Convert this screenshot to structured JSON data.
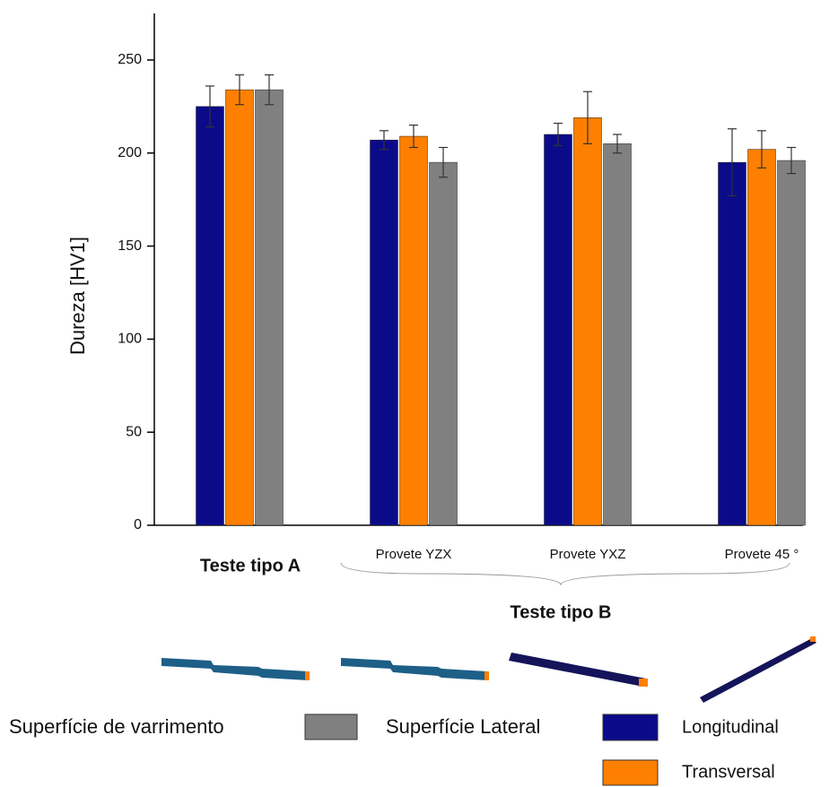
{
  "chart_data": {
    "type": "bar",
    "y_label": "Dureza [HV1]",
    "categories": [
      "Teste tipo A",
      "Provete YZX",
      "Provete YXZ",
      "Provete 45 °"
    ],
    "group_label": "Teste tipo B",
    "legend_heading": "Superfície Lateral",
    "series": [
      {
        "name": "Longitudinal",
        "color": "#0b0b8a",
        "values": [
          225,
          207,
          210,
          195
        ],
        "errors": [
          11,
          5,
          6,
          18
        ]
      },
      {
        "name": "Transversal",
        "color": "#ff8000",
        "values": [
          234,
          209,
          219,
          202
        ],
        "errors": [
          8,
          6,
          14,
          10
        ]
      },
      {
        "name": "Superfície de varrimento",
        "color": "#808080",
        "values": [
          234,
          195,
          205,
          196
        ],
        "errors": [
          8,
          8,
          5,
          7
        ]
      }
    ],
    "ylim": [
      0,
      275
    ],
    "yticks": [
      0,
      50,
      100,
      150,
      200,
      250
    ]
  }
}
